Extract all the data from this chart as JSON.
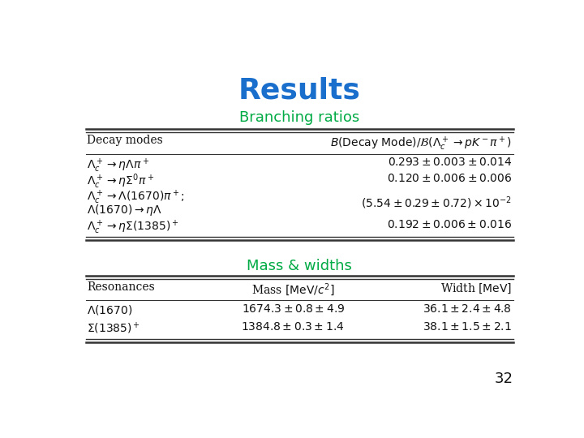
{
  "title": "Results",
  "title_color": "#1a6fcc",
  "title_fontsize": 26,
  "section1_label": "Branching ratios",
  "section1_color": "#00aa44",
  "section1_fontsize": 13,
  "section2_label": "Mass & widths",
  "section2_color": "#00aa44",
  "section2_fontsize": 13,
  "br_header_col1": "Decay modes",
  "br_header_col2": "$B(\\mathrm{Decay\\ Mode})/\\mathcal{B}(\\Lambda_c^+ \\to pK^-\\pi^+)$",
  "br_row_left": [
    "$\\Lambda_c^+ \\to \\eta\\Lambda\\pi^+$",
    "$\\Lambda_c^+ \\to \\eta\\Sigma^0\\pi^+$",
    "$\\Lambda_c^+ \\to \\Lambda(1670)\\pi^+;$",
    "$\\Lambda(1670) \\to \\eta\\Lambda$",
    "$\\Lambda_c^+ \\to \\eta\\Sigma(1385)^+$"
  ],
  "br_row_right": [
    "$0.293 \\pm 0.003 \\pm 0.014$",
    "$0.120 \\pm 0.006 \\pm 0.006$",
    "$(5.54 \\pm 0.29 \\pm 0.72) \\times 10^{-2}$",
    "",
    "$0.192 \\pm 0.006 \\pm 0.016$"
  ],
  "mw_header": [
    "Resonances",
    "Mass $[\\mathrm{MeV}/c^2]$",
    "Width $[\\mathrm{MeV}]$"
  ],
  "mw_rows": [
    [
      "$\\Lambda(1670)$",
      "$1674.3 \\pm 0.8 \\pm 4.9$",
      "$36.1 \\pm 2.4 \\pm 4.8$"
    ],
    [
      "$\\Sigma(1385)^+$",
      "$1384.8 \\pm 0.3 \\pm 1.4$",
      "$38.1 \\pm 1.5 \\pm 2.1$"
    ]
  ],
  "slide_number": "32",
  "bg_color": "#ffffff",
  "text_color": "#111111"
}
